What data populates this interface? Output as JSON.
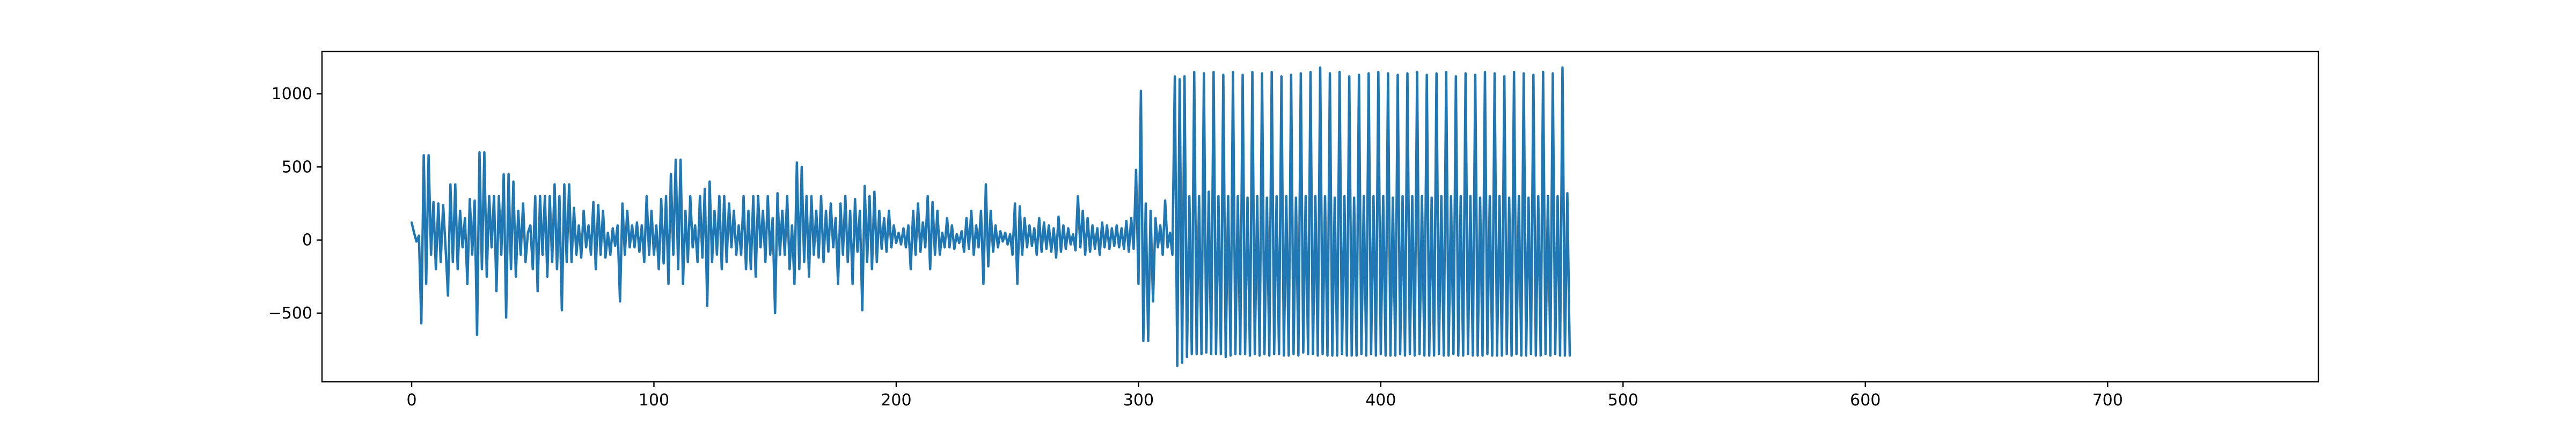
{
  "chart_data": {
    "type": "line",
    "title": "",
    "xlabel": "",
    "ylabel": "",
    "xlim": [
      -37,
      787
    ],
    "ylim": [
      -970,
      1290
    ],
    "x_ticks": [
      0,
      100,
      200,
      300,
      400,
      500,
      600,
      700
    ],
    "y_ticks": [
      -500,
      0,
      500,
      1000
    ],
    "grid": false,
    "legend": "none",
    "series": [
      {
        "color": "#1f77b4",
        "x_start": 0,
        "x_step": 1,
        "values": [
          120,
          50,
          -10,
          30,
          -570,
          580,
          -300,
          580,
          -100,
          260,
          -200,
          250,
          -150,
          240,
          -50,
          -380,
          380,
          -150,
          380,
          -200,
          200,
          -50,
          150,
          -300,
          280,
          -100,
          270,
          -650,
          600,
          -200,
          600,
          -250,
          300,
          -50,
          300,
          -350,
          300,
          -100,
          450,
          -530,
          450,
          -200,
          400,
          -250,
          200,
          -100,
          250,
          -150,
          50,
          100,
          -200,
          300,
          -350,
          300,
          -100,
          300,
          -250,
          300,
          -150,
          380,
          -200,
          300,
          -480,
          380,
          -150,
          380,
          -150,
          220,
          -100,
          100,
          -120,
          200,
          -50,
          100,
          -100,
          260,
          -200,
          240,
          -100,
          200,
          -120,
          50,
          -100,
          80,
          -40,
          100,
          -420,
          250,
          -100,
          200,
          -50,
          100,
          -50,
          120,
          -80,
          100,
          -150,
          300,
          -100,
          200,
          -100,
          100,
          -200,
          280,
          -160,
          300,
          -300,
          450,
          -100,
          550,
          -200,
          550,
          -300,
          200,
          -150,
          300,
          -50,
          100,
          -150,
          300,
          -120,
          350,
          -450,
          400,
          -150,
          200,
          -100,
          300,
          -200,
          300,
          -150,
          250,
          -50,
          200,
          -100,
          100,
          -100,
          300,
          -200,
          200,
          -200,
          300,
          -250,
          300,
          -50,
          200,
          -150,
          300,
          -100,
          150,
          -500,
          320,
          -100,
          200,
          -100,
          300,
          -200,
          100,
          -300,
          530,
          -200,
          500,
          -150,
          300,
          -250,
          300,
          -100,
          200,
          -120,
          300,
          -150,
          200,
          -80,
          250,
          -50,
          150,
          -300,
          250,
          -100,
          300,
          -150,
          200,
          -300,
          280,
          -80,
          200,
          -480,
          370,
          -150,
          300,
          -200,
          330,
          -150,
          200,
          -60,
          150,
          -80,
          200,
          -50,
          100,
          -20,
          50,
          -30,
          80,
          -50,
          100,
          -200,
          200,
          -100,
          250,
          -80,
          120,
          -50,
          300,
          -200,
          260,
          -100,
          200,
          -100,
          50,
          -50,
          150,
          -50,
          100,
          -60,
          40,
          -20,
          60,
          -80,
          150,
          -60,
          200,
          -100,
          100,
          -50,
          200,
          -300,
          380,
          -180,
          200,
          -80,
          100,
          -50,
          60,
          -10,
          50,
          -30,
          40,
          -100,
          250,
          -300,
          230,
          -100,
          150,
          -50,
          100,
          -40,
          80,
          -100,
          150,
          -80,
          120,
          -60,
          100,
          -80,
          80,
          -120,
          160,
          -80,
          100,
          -60,
          80,
          -30,
          40,
          -70,
          300,
          -50,
          200,
          -100,
          150,
          -80,
          100,
          -60,
          80,
          -100,
          120,
          -50,
          100,
          -60,
          80,
          -40,
          100,
          -50,
          80,
          -60,
          130,
          -80,
          150,
          -60,
          480,
          -300,
          1020,
          -690,
          250,
          -690,
          200,
          -420,
          150,
          -50,
          100,
          -100,
          270,
          -50,
          50,
          -100,
          1120,
          -860,
          1100,
          -840,
          1120,
          -800,
          300,
          -780,
          1150,
          -780,
          300,
          -780,
          1140,
          -770,
          330,
          -780,
          1150,
          -780,
          300,
          -780,
          1130,
          -800,
          300,
          -790,
          1150,
          -780,
          300,
          -780,
          1130,
          -780,
          290,
          -790,
          1150,
          -780,
          300,
          -790,
          1140,
          -780,
          290,
          -790,
          1150,
          -780,
          300,
          -780,
          1120,
          -790,
          300,
          -790,
          1130,
          -780,
          290,
          -790,
          1140,
          -770,
          300,
          -780,
          1150,
          -780,
          300,
          -790,
          1180,
          -780,
          300,
          -790,
          1140,
          -790,
          290,
          -790,
          1150,
          -780,
          300,
          -790,
          1120,
          -790,
          290,
          -790,
          1130,
          -780,
          300,
          -790,
          1140,
          -780,
          300,
          -790,
          1150,
          -780,
          300,
          -790,
          1140,
          -790,
          290,
          -790,
          1130,
          -780,
          300,
          -790,
          1140,
          -780,
          300,
          -790,
          1150,
          -780,
          300,
          -790,
          1130,
          -790,
          290,
          -790,
          1140,
          -780,
          300,
          -790,
          1150,
          -790,
          300,
          -780,
          1120,
          -790,
          300,
          -790,
          1140,
          -780,
          300,
          -790,
          1130,
          -790,
          290,
          -790,
          1150,
          -780,
          300,
          -790,
          1140,
          -790,
          300,
          -790,
          1120,
          -780,
          290,
          -790,
          1150,
          -780,
          300,
          -790,
          1140,
          -790,
          290,
          -780,
          1130,
          -790,
          300,
          -790,
          1150,
          -780,
          300,
          -790,
          1140,
          -780,
          300,
          -790,
          1180,
          -790,
          320,
          -790
        ]
      }
    ]
  }
}
